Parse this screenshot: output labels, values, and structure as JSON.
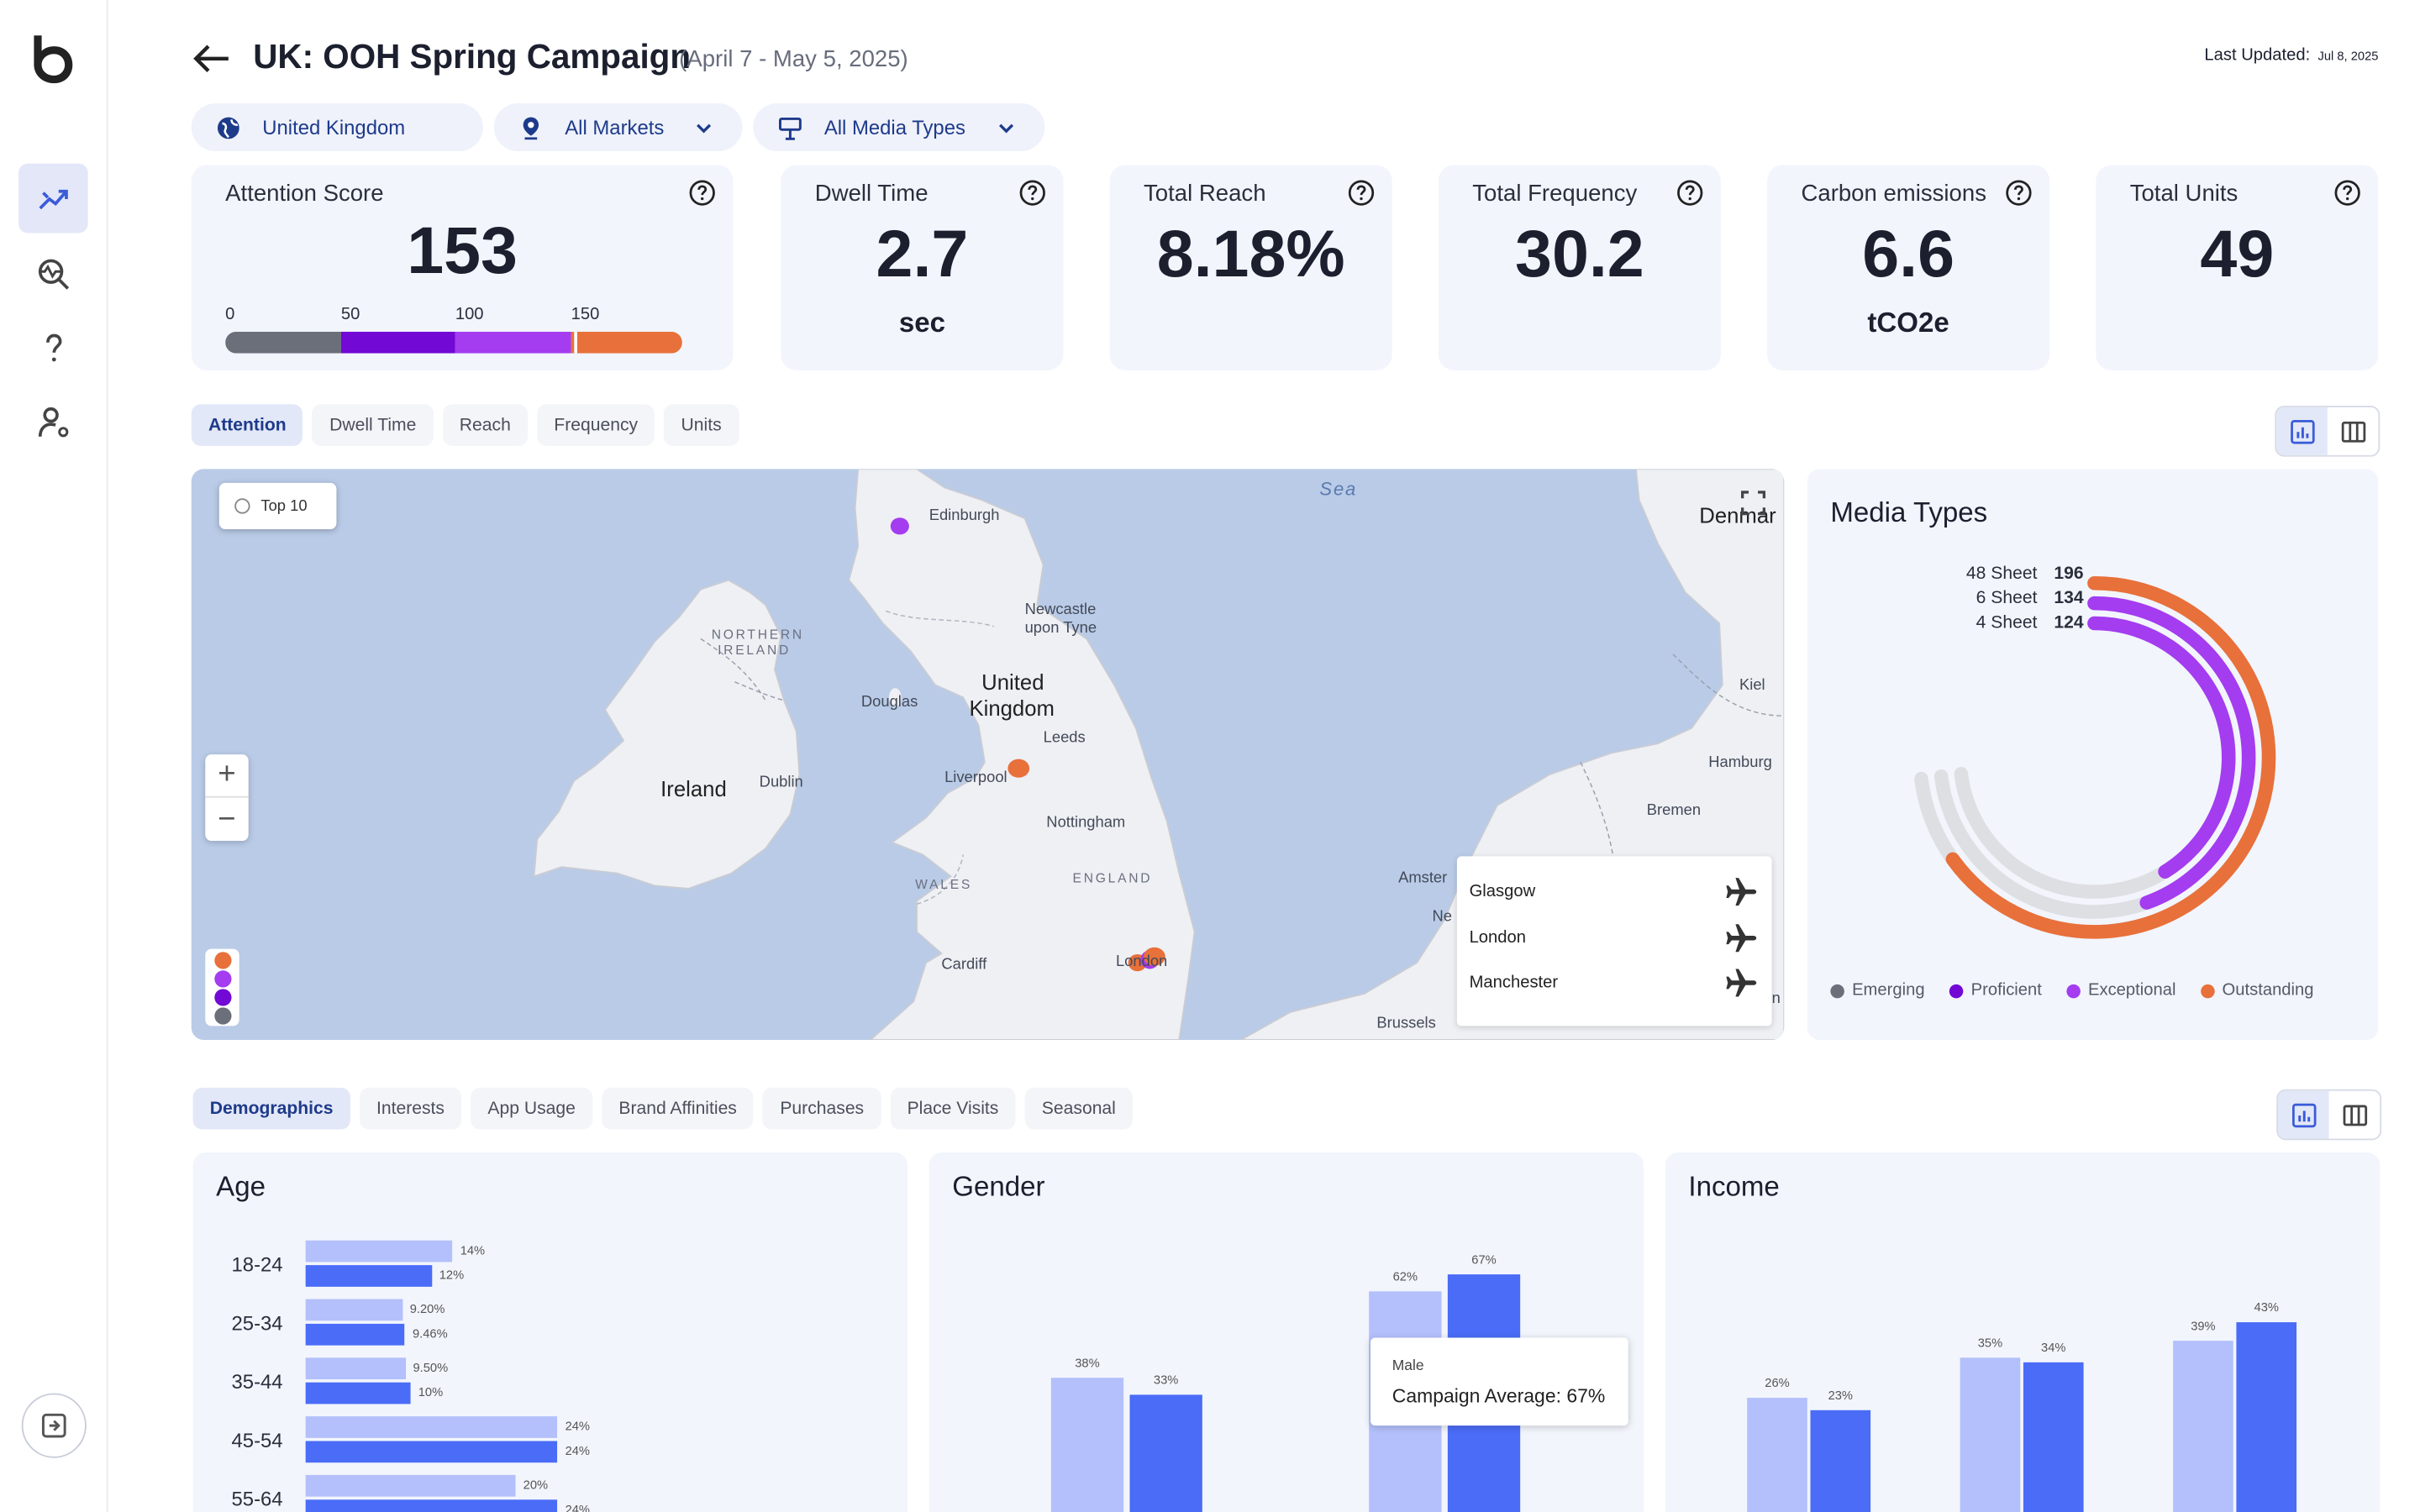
{
  "header": {
    "title": "UK: OOH Spring Campaign",
    "date_range": "(April 7 - May 5, 2025)",
    "last_updated_label": "Last Updated:",
    "last_updated_date": "Jul 8, 2025"
  },
  "filters": {
    "country": "United Kingdom",
    "markets": "All Markets",
    "media_types": "All Media Types"
  },
  "kpis": {
    "attention": {
      "label": "Attention Score",
      "value": "153",
      "scale_ticks": [
        "0",
        "50",
        "100",
        "150"
      ]
    },
    "dwell": {
      "label": "Dwell Time",
      "value": "2.7",
      "unit": "sec"
    },
    "reach": {
      "label": "Total Reach",
      "value": "8.18%"
    },
    "frequency": {
      "label": "Total Frequency",
      "value": "30.2"
    },
    "carbon": {
      "label": "Carbon emissions",
      "value": "6.6",
      "unit": "tCO2e"
    },
    "units": {
      "label": "Total Units",
      "value": "49"
    }
  },
  "metric_tabs": [
    "Attention",
    "Dwell Time",
    "Reach",
    "Frequency",
    "Units"
  ],
  "map": {
    "top10_label": "Top 10",
    "labels": {
      "sea": "Sea",
      "denmark": "Denmar",
      "edinburgh": "Edinburgh",
      "newcastle1": "Newcastle",
      "newcastle2": "upon Tyne",
      "ni1": "NORTHERN",
      "ni2": "IRELAND",
      "uk1": "United",
      "uk2": "Kingdom",
      "douglas": "Douglas",
      "kiel": "Kiel",
      "leeds": "Leeds",
      "liverpool": "Liverpool",
      "hamburg": "Hamburg",
      "ireland": "Ireland",
      "dublin": "Dublin",
      "bremen": "Bremen",
      "nottingham": "Nottingham",
      "wales": "WALES",
      "england": "ENGLAND",
      "amsterdam": "Amster",
      "cardiff": "Cardiff",
      "london": "London",
      "brussels": "Brussels",
      "ne": "Ne",
      "n": "n"
    },
    "airports": [
      "Glasgow",
      "London",
      "Manchester"
    ]
  },
  "media_types": {
    "title": "Media Types",
    "rings": [
      {
        "name": "48 Sheet",
        "value": "196"
      },
      {
        "name": "6 Sheet",
        "value": "134"
      },
      {
        "name": "4 Sheet",
        "value": "124"
      }
    ],
    "legend": [
      {
        "label": "Emerging",
        "color": "#6b6f7a"
      },
      {
        "label": "Proficient",
        "color": "#7209d4"
      },
      {
        "label": "Exceptional",
        "color": "#a43cf0"
      },
      {
        "label": "Outstanding",
        "color": "#e8703a"
      }
    ]
  },
  "audience_tabs": [
    "Demographics",
    "Interests",
    "App Usage",
    "Brand Affinities",
    "Purchases",
    "Place Visits",
    "Seasonal"
  ],
  "age": {
    "title": "Age",
    "rows": [
      {
        "label": "18-24",
        "a": "14%",
        "b": "12%"
      },
      {
        "label": "25-34",
        "a": "9.20%",
        "b": "9.46%"
      },
      {
        "label": "35-44",
        "a": "9.50%",
        "b": "10%"
      },
      {
        "label": "45-54",
        "a": "24%",
        "b": "24%"
      },
      {
        "label": "55-64",
        "a": "20%",
        "b": "24%"
      }
    ]
  },
  "gender": {
    "title": "Gender",
    "groups": [
      {
        "a": "38%",
        "b": "33%"
      },
      {
        "a": "62%",
        "b": "67%"
      }
    ],
    "tooltip": {
      "category": "Male",
      "text": "Campaign Average:  67%"
    }
  },
  "income": {
    "title": "Income",
    "groups": [
      {
        "a": "26%",
        "b": "23%"
      },
      {
        "a": "35%",
        "b": "34%"
      },
      {
        "a": "39%",
        "b": "43%"
      }
    ]
  }
}
